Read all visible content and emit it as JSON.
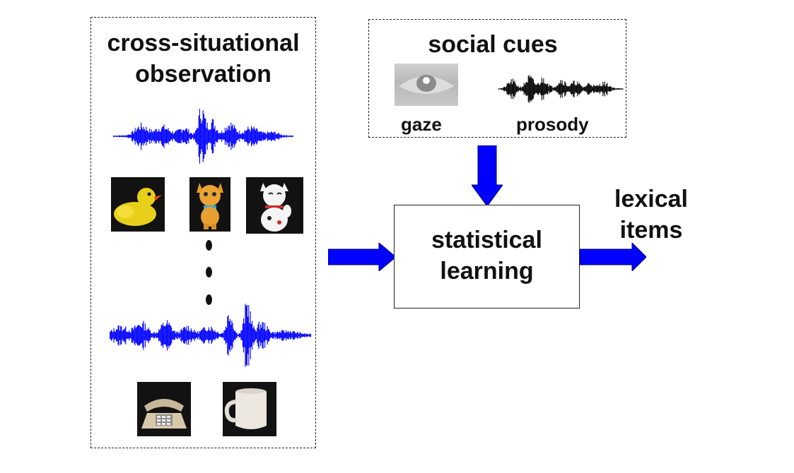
{
  "left_panel": {
    "title_line1": "cross-situational",
    "title_line2": "observation"
  },
  "social_panel": {
    "title": "social cues",
    "gaze_label": "gaze",
    "prosody_label": "prosody"
  },
  "center_box": {
    "line1": "statistical",
    "line2": "learning"
  },
  "output": {
    "line1": "lexical",
    "line2": "items"
  },
  "colors": {
    "waveform": "#0000ff",
    "arrow": "#0000ff",
    "prosody_wave": "#000000",
    "photo_bg": "#121212"
  },
  "icons": [
    "duck-toy",
    "cat-toy",
    "lucky-cat",
    "telephone",
    "mug",
    "eye"
  ]
}
